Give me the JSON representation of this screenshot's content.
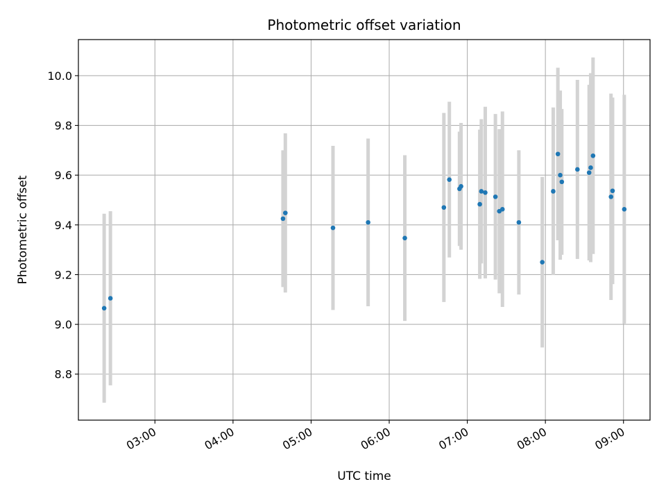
{
  "chart_data": {
    "type": "scatter",
    "title": "Photometric offset variation",
    "xlabel": "UTC time",
    "ylabel": "Photometric offset",
    "x_unit": "UTC time of day (decimal hours)",
    "xlim": [
      2.02,
      9.34
    ],
    "ylim": [
      8.615,
      10.145
    ],
    "x_ticks": [
      {
        "value": 3.0,
        "label": "03:00"
      },
      {
        "value": 4.0,
        "label": "04:00"
      },
      {
        "value": 5.0,
        "label": "05:00"
      },
      {
        "value": 6.0,
        "label": "06:00"
      },
      {
        "value": 7.0,
        "label": "07:00"
      },
      {
        "value": 8.0,
        "label": "08:00"
      },
      {
        "value": 9.0,
        "label": "09:00"
      }
    ],
    "y_ticks": [
      {
        "value": 8.8,
        "label": "8.8"
      },
      {
        "value": 9.0,
        "label": "9.0"
      },
      {
        "value": 9.2,
        "label": "9.2"
      },
      {
        "value": 9.4,
        "label": "9.4"
      },
      {
        "value": 9.6,
        "label": "9.6"
      },
      {
        "value": 9.8,
        "label": "9.8"
      },
      {
        "value": 10.0,
        "label": "10.0"
      }
    ],
    "grid": true,
    "marker_color": "#1f77b4",
    "errorbar_color": "#d3d3d3",
    "points": [
      {
        "x": 2.35,
        "y": 9.065,
        "err": 0.38
      },
      {
        "x": 2.43,
        "y": 9.105,
        "err": 0.35
      },
      {
        "x": 4.64,
        "y": 9.425,
        "err": 0.275
      },
      {
        "x": 4.67,
        "y": 9.448,
        "err": 0.32
      },
      {
        "x": 5.28,
        "y": 9.388,
        "err": 0.33
      },
      {
        "x": 5.73,
        "y": 9.41,
        "err": 0.337
      },
      {
        "x": 6.2,
        "y": 9.347,
        "err": 0.333
      },
      {
        "x": 6.7,
        "y": 9.47,
        "err": 0.38
      },
      {
        "x": 6.77,
        "y": 9.582,
        "err": 0.313
      },
      {
        "x": 6.9,
        "y": 9.545,
        "err": 0.23
      },
      {
        "x": 6.92,
        "y": 9.555,
        "err": 0.255
      },
      {
        "x": 7.16,
        "y": 9.483,
        "err": 0.3
      },
      {
        "x": 7.18,
        "y": 9.535,
        "err": 0.29
      },
      {
        "x": 7.23,
        "y": 9.53,
        "err": 0.345
      },
      {
        "x": 7.36,
        "y": 9.513,
        "err": 0.333
      },
      {
        "x": 7.41,
        "y": 9.455,
        "err": 0.33
      },
      {
        "x": 7.45,
        "y": 9.463,
        "err": 0.393
      },
      {
        "x": 7.66,
        "y": 9.41,
        "err": 0.29
      },
      {
        "x": 7.96,
        "y": 9.25,
        "err": 0.343
      },
      {
        "x": 8.1,
        "y": 9.535,
        "err": 0.337
      },
      {
        "x": 8.16,
        "y": 9.685,
        "err": 0.347
      },
      {
        "x": 8.19,
        "y": 9.6,
        "err": 0.34
      },
      {
        "x": 8.21,
        "y": 9.573,
        "err": 0.293
      },
      {
        "x": 8.41,
        "y": 9.623,
        "err": 0.36
      },
      {
        "x": 8.56,
        "y": 9.61,
        "err": 0.353
      },
      {
        "x": 8.58,
        "y": 9.63,
        "err": 0.38
      },
      {
        "x": 8.61,
        "y": 9.678,
        "err": 0.395
      },
      {
        "x": 8.84,
        "y": 9.513,
        "err": 0.415
      },
      {
        "x": 8.86,
        "y": 9.537,
        "err": 0.375
      },
      {
        "x": 9.01,
        "y": 9.463,
        "err": 0.46
      }
    ]
  }
}
